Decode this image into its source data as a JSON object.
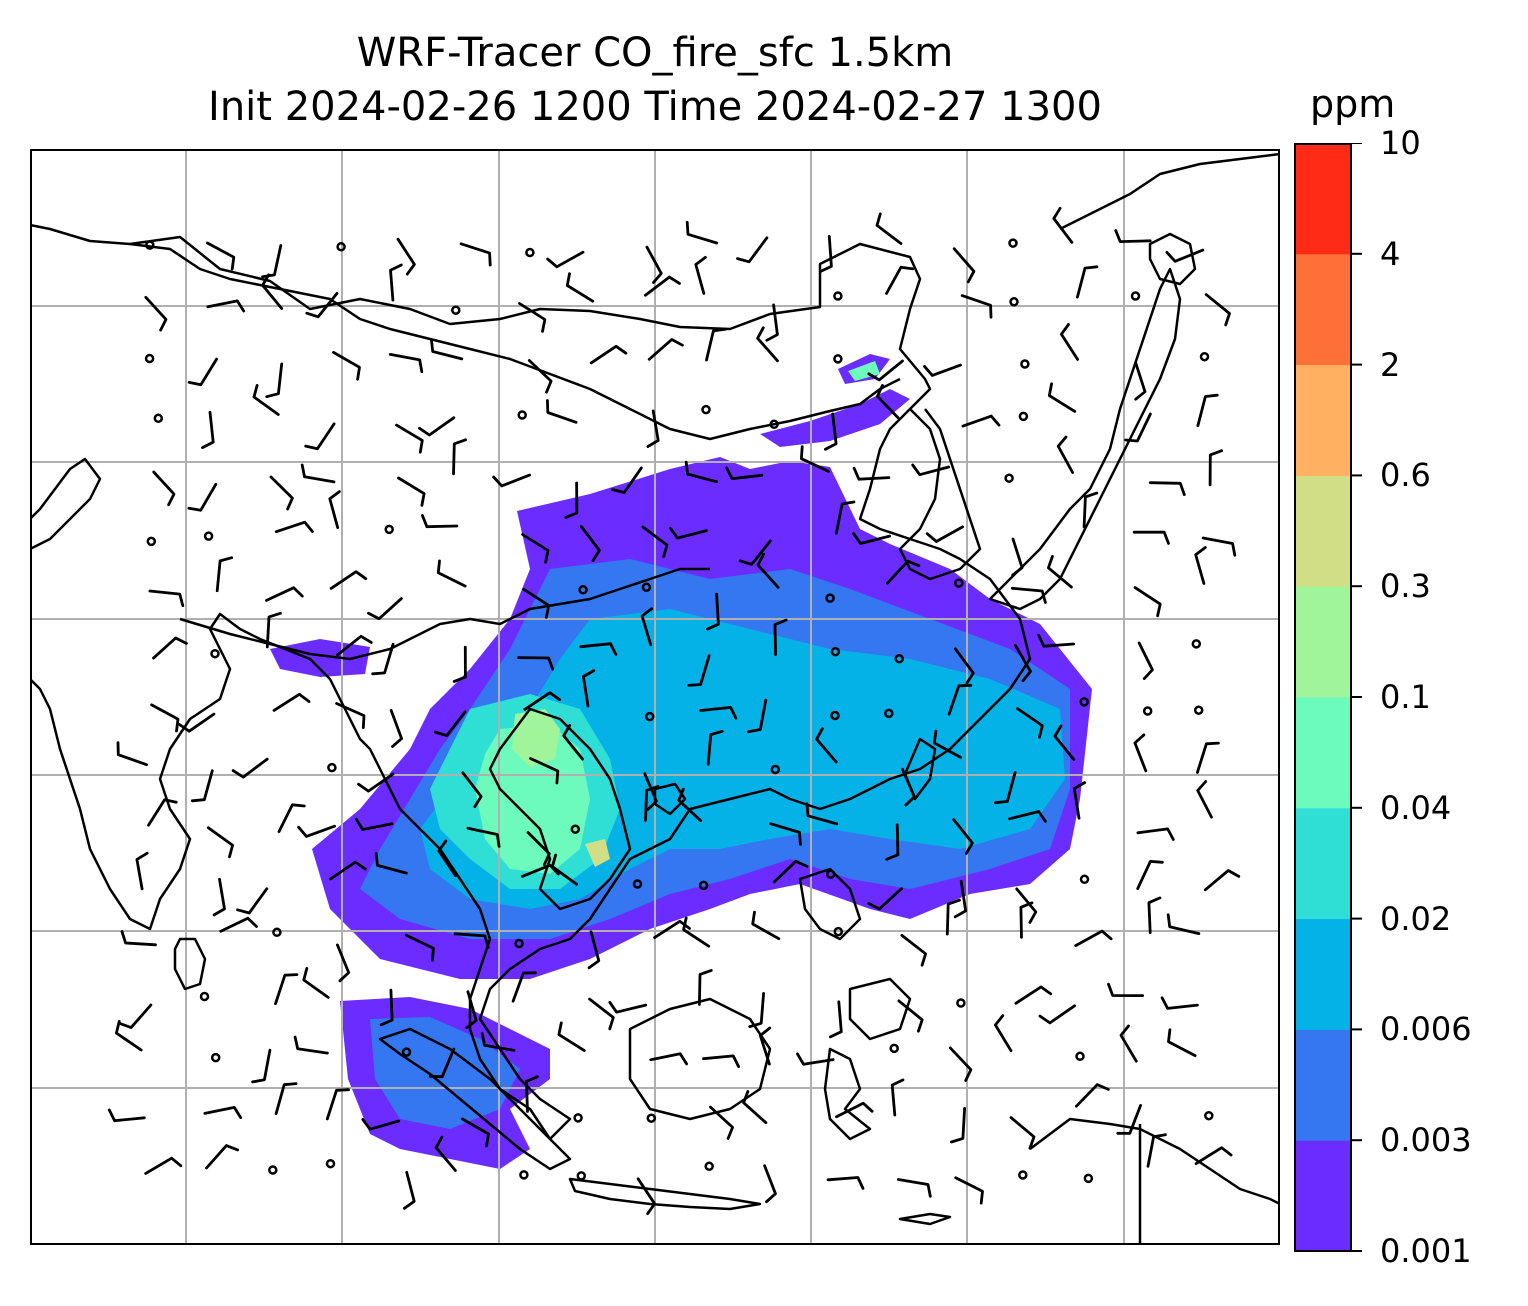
{
  "title": {
    "line1": "WRF-Tracer CO_fire_sfc 1.5km",
    "line2": "Init 2024-02-26 1200 Time 2024-02-27 1300"
  },
  "colorbar": {
    "unit": "ppm",
    "levels": [
      "0.001",
      "0.003",
      "0.006",
      "0.02",
      "0.04",
      "0.1",
      "0.3",
      "0.6",
      "2",
      "4",
      "10"
    ],
    "colors": [
      "#6a2cff",
      "#3477f0",
      "#05b2e8",
      "#2fdfd6",
      "#6cfbbc",
      "#a0f59a",
      "#d2de86",
      "#ffb060",
      "#ff7038",
      "#ff2b17"
    ]
  },
  "map": {
    "plume_colors": {
      "very_low": "#6a2cff",
      "low": "#3477f0",
      "mid": "#05b2e8",
      "high": "#2fdfd6",
      "higher": "#6cfbbc",
      "peak": "#a0f59a",
      "hotspot": "#d2de86"
    },
    "coastline_color": "#000000",
    "gridline_color": "#b0b0b0",
    "wind_barb_color": "#000000"
  }
}
